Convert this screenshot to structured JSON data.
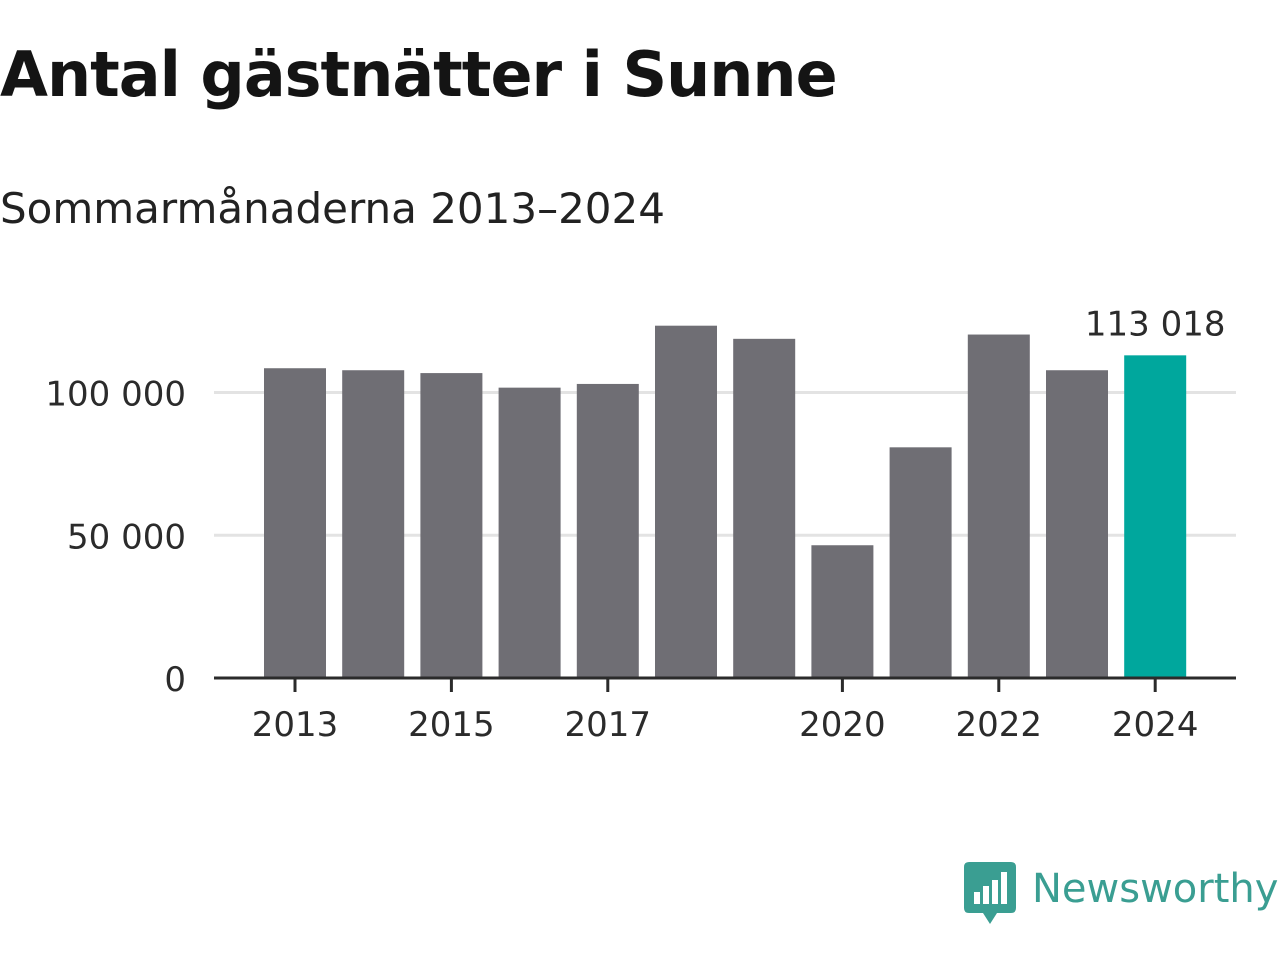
{
  "title": "Antal gästnätter i Sunne",
  "subtitle": "Sommarmånaderna 2013–2024",
  "brand": {
    "name": "Newsworthy",
    "color": "#3a9e92",
    "icon": "bar-chart-speech-bubble-icon"
  },
  "colors": {
    "bar": "#6f6e74",
    "highlight": "#00a79d",
    "grid": "#e3e3e3",
    "axis": "#2b2b2b"
  },
  "chart_data": {
    "type": "bar",
    "categories": [
      "2013",
      "2014",
      "2015",
      "2016",
      "2017",
      "2018",
      "2019",
      "2020",
      "2021",
      "2022",
      "2023",
      "2024"
    ],
    "values": [
      108500,
      107800,
      106800,
      101700,
      103000,
      123400,
      118800,
      46500,
      80800,
      120300,
      107800,
      113018
    ],
    "highlight_index": 11,
    "value_label": "113 018",
    "x_tick_labels": [
      "2013",
      "2015",
      "2017",
      "2020",
      "2022",
      "2024"
    ],
    "y_ticks": [
      0,
      50000,
      100000
    ],
    "y_tick_labels": [
      "0",
      "50 000",
      "100 000"
    ],
    "ylim": [
      0,
      125000
    ],
    "grid": true
  }
}
